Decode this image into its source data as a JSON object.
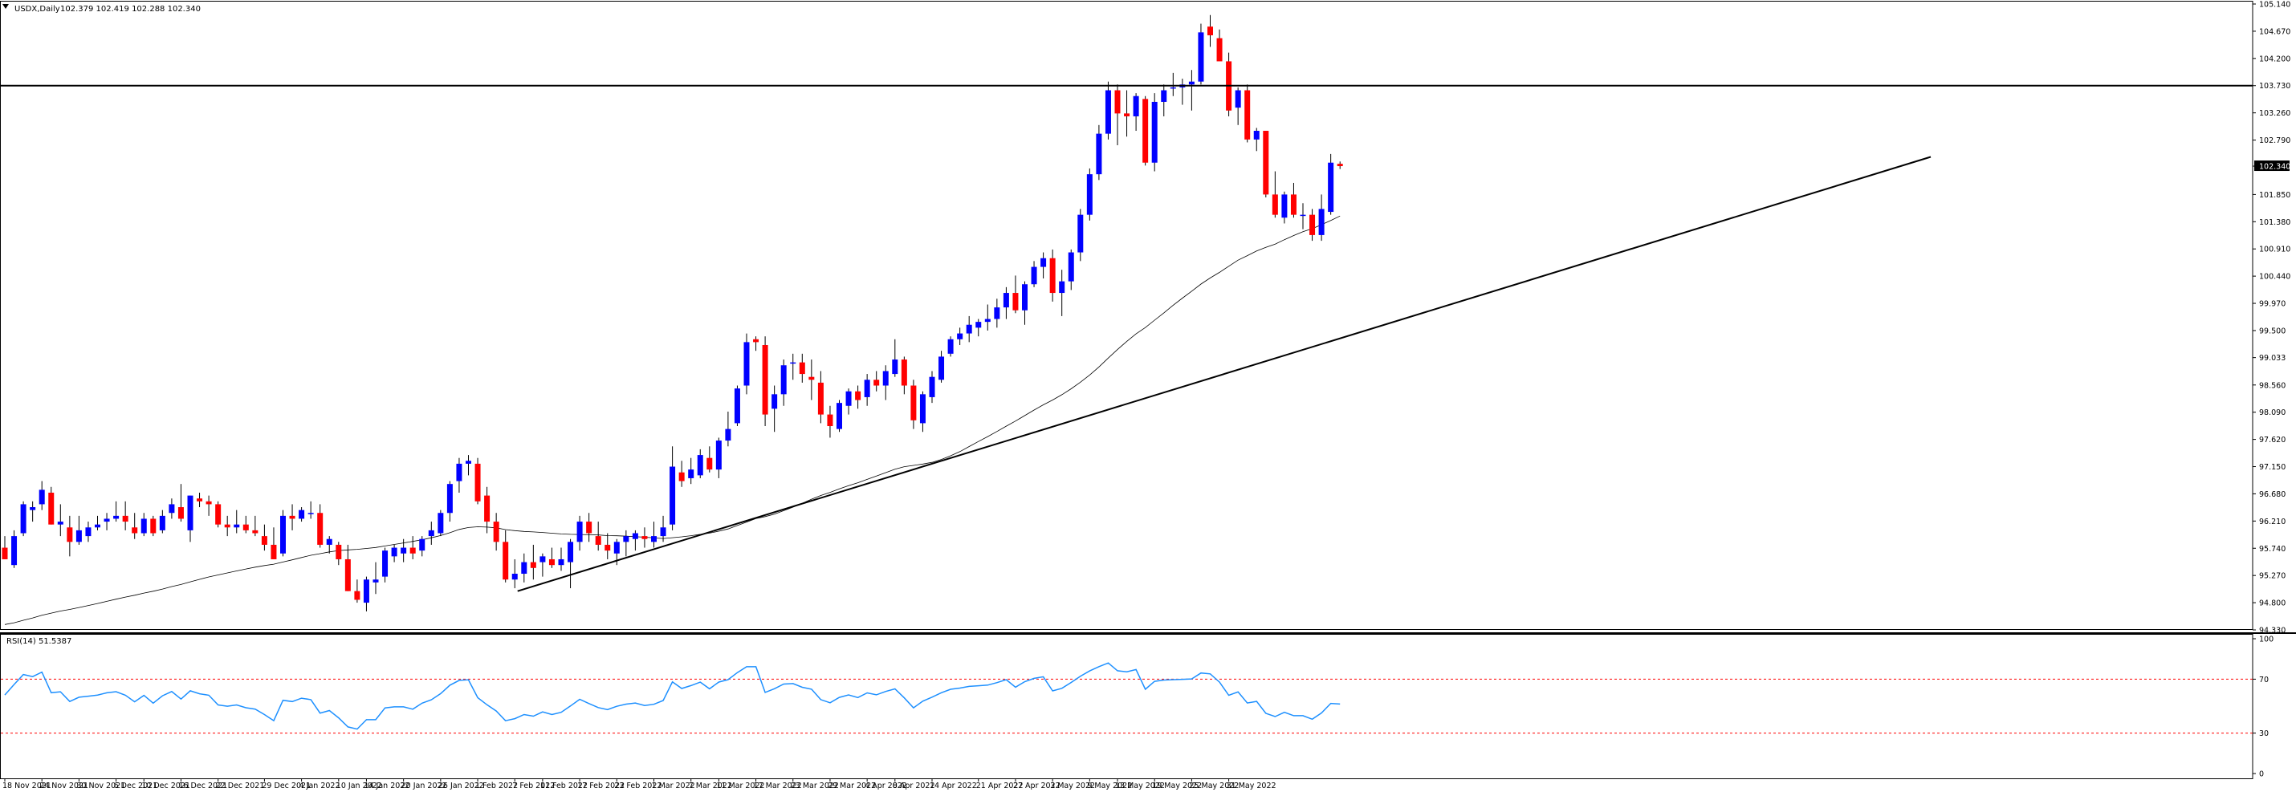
{
  "main_header": {
    "symbol": "USDX,Daily",
    "ohlc": "102.379 102.419 102.288 102.340"
  },
  "rsi_header": {
    "text": "RSI(14) 51.5387"
  },
  "colors": {
    "bull": "#0000ff",
    "bear": "#ff0000",
    "rsi_line": "#1e90ff",
    "ma_line": "#000000",
    "level_lines": "#ff0000",
    "last_price_bg": "#000000"
  },
  "chart_data": [
    {
      "type": "candlestick",
      "symbol": "USDX",
      "timeframe": "Daily",
      "ylim": [
        94.33,
        105.14
      ],
      "price_ticks": [
        "105.140",
        "104.670",
        "104.200",
        "103.730",
        "103.260",
        "102.790",
        "102.340",
        "101.850",
        "101.380",
        "100.910",
        "100.440",
        "99.970",
        "99.500",
        "99.033",
        "98.560",
        "98.090",
        "97.620",
        "97.150",
        "96.680",
        "96.210",
        "95.740",
        "95.270",
        "94.800",
        "94.330"
      ],
      "last_price": 102.34,
      "date_labels": [
        "18 Nov 2021",
        "24 Nov 2021",
        "30 Nov 2021",
        "6 Dec 2021",
        "10 Dec 2021",
        "16 Dec 2021",
        "22 Dec 2021",
        "29 Dec 2021",
        "4 Jan 2022",
        "10 Jan 2022",
        "14 Jan 2022",
        "20 Jan 2022",
        "26 Jan 2022",
        "1 Feb 2022",
        "7 Feb 2022",
        "11 Feb 2022",
        "17 Feb 2022",
        "23 Feb 2022",
        "1 Mar 2022",
        "7 Mar 2022",
        "11 Mar 2022",
        "17 Mar 2022",
        "23 Mar 2022",
        "29 Mar 2022",
        "4 Apr 2022",
        "8 Apr 2022",
        "14 Apr 2022",
        "21 Apr 2022",
        "27 Apr 2022",
        "3 May 2022",
        "9 May 2022",
        "13 May 2022",
        "19 May 2022",
        "25 May 2022",
        "31 May 2022"
      ],
      "date_label_positions": [
        0,
        4,
        8,
        12,
        15,
        19,
        23,
        28,
        32,
        36,
        39,
        43,
        47,
        51,
        55,
        58,
        62,
        66,
        70,
        74,
        77,
        81,
        85,
        89,
        93,
        96,
        100,
        105,
        109,
        113,
        117,
        120,
        124,
        128,
        132
      ],
      "candles": [
        [
          95.75,
          95.95,
          95.55,
          95.55
        ],
        [
          95.45,
          96.05,
          95.4,
          95.95
        ],
        [
          96.0,
          96.55,
          95.95,
          96.5
        ],
        [
          96.4,
          96.55,
          96.2,
          96.45
        ],
        [
          96.5,
          96.9,
          96.4,
          96.75
        ],
        [
          96.7,
          96.8,
          96.15,
          96.15
        ],
        [
          96.15,
          96.5,
          95.95,
          96.2
        ],
        [
          96.1,
          96.3,
          95.6,
          95.85
        ],
        [
          95.85,
          96.3,
          95.8,
          96.05
        ],
        [
          95.95,
          96.2,
          95.85,
          96.1
        ],
        [
          96.1,
          96.3,
          96.05,
          96.15
        ],
        [
          96.2,
          96.35,
          96.05,
          96.25
        ],
        [
          96.25,
          96.55,
          96.2,
          96.3
        ],
        [
          96.3,
          96.55,
          96.05,
          96.2
        ],
        [
          96.1,
          96.35,
          95.9,
          96.0
        ],
        [
          96.0,
          96.35,
          95.95,
          96.25
        ],
        [
          96.25,
          96.3,
          95.95,
          96.0
        ],
        [
          96.05,
          96.4,
          96.0,
          96.3
        ],
        [
          96.35,
          96.6,
          96.25,
          96.5
        ],
        [
          96.45,
          96.85,
          96.2,
          96.25
        ],
        [
          96.05,
          96.65,
          95.85,
          96.65
        ],
        [
          96.6,
          96.7,
          96.45,
          96.55
        ],
        [
          96.55,
          96.65,
          96.3,
          96.5
        ],
        [
          96.5,
          96.55,
          96.1,
          96.15
        ],
        [
          96.15,
          96.3,
          95.95,
          96.1
        ],
        [
          96.1,
          96.4,
          96.0,
          96.15
        ],
        [
          96.15,
          96.3,
          96.0,
          96.05
        ],
        [
          96.05,
          96.3,
          95.95,
          96.0
        ],
        [
          95.95,
          96.15,
          95.7,
          95.8
        ],
        [
          95.8,
          96.1,
          95.55,
          95.55
        ],
        [
          95.65,
          96.4,
          95.6,
          96.3
        ],
        [
          96.3,
          96.5,
          96.05,
          96.25
        ],
        [
          96.25,
          96.45,
          96.2,
          96.4
        ],
        [
          96.35,
          96.55,
          96.25,
          96.35
        ],
        [
          96.35,
          96.5,
          95.75,
          95.8
        ],
        [
          95.8,
          95.95,
          95.65,
          95.9
        ],
        [
          95.8,
          95.85,
          95.45,
          95.55
        ],
        [
          95.55,
          95.8,
          95.0,
          95.0
        ],
        [
          95.0,
          95.2,
          94.8,
          94.85
        ],
        [
          94.8,
          95.25,
          94.65,
          95.2
        ],
        [
          95.15,
          95.5,
          94.95,
          95.2
        ],
        [
          95.25,
          95.75,
          95.15,
          95.7
        ],
        [
          95.6,
          95.8,
          95.5,
          95.75
        ],
        [
          95.65,
          95.9,
          95.5,
          95.75
        ],
        [
          95.75,
          95.95,
          95.55,
          95.65
        ],
        [
          95.7,
          95.95,
          95.6,
          95.9
        ],
        [
          95.95,
          96.2,
          95.8,
          96.05
        ],
        [
          96.0,
          96.4,
          95.95,
          96.35
        ],
        [
          96.35,
          96.9,
          96.2,
          96.85
        ],
        [
          96.9,
          97.3,
          96.7,
          97.2
        ],
        [
          97.2,
          97.35,
          97.0,
          97.25
        ],
        [
          97.2,
          97.3,
          96.5,
          96.55
        ],
        [
          96.65,
          96.8,
          96.0,
          96.2
        ],
        [
          96.2,
          96.35,
          95.7,
          95.85
        ],
        [
          95.85,
          96.05,
          95.15,
          95.2
        ],
        [
          95.2,
          95.55,
          95.05,
          95.3
        ],
        [
          95.3,
          95.65,
          95.15,
          95.5
        ],
        [
          95.5,
          95.8,
          95.2,
          95.4
        ],
        [
          95.5,
          95.65,
          95.25,
          95.6
        ],
        [
          95.55,
          95.75,
          95.4,
          95.45
        ],
        [
          95.45,
          95.75,
          95.35,
          95.55
        ],
        [
          95.5,
          95.9,
          95.05,
          95.85
        ],
        [
          95.85,
          96.3,
          95.7,
          96.2
        ],
        [
          96.2,
          96.35,
          95.85,
          96.0
        ],
        [
          95.95,
          96.2,
          95.7,
          95.8
        ],
        [
          95.8,
          96.0,
          95.55,
          95.7
        ],
        [
          95.65,
          95.9,
          95.45,
          95.85
        ],
        [
          95.85,
          96.05,
          95.6,
          95.95
        ],
        [
          95.9,
          96.05,
          95.7,
          96.0
        ],
        [
          95.95,
          96.1,
          95.75,
          95.9
        ],
        [
          95.85,
          96.2,
          95.75,
          95.95
        ],
        [
          95.95,
          96.3,
          95.85,
          96.1
        ],
        [
          96.15,
          97.5,
          96.05,
          97.15
        ],
        [
          97.05,
          97.25,
          96.8,
          96.9
        ],
        [
          96.95,
          97.3,
          96.85,
          97.1
        ],
        [
          97.0,
          97.45,
          96.95,
          97.35
        ],
        [
          97.3,
          97.5,
          97.05,
          97.1
        ],
        [
          97.1,
          97.65,
          96.95,
          97.6
        ],
        [
          97.6,
          98.1,
          97.5,
          97.8
        ],
        [
          97.9,
          98.55,
          97.85,
          98.5
        ],
        [
          98.55,
          99.45,
          98.4,
          99.3
        ],
        [
          99.35,
          99.4,
          99.15,
          99.3
        ],
        [
          99.25,
          99.4,
          97.85,
          98.05
        ],
        [
          98.15,
          98.55,
          97.75,
          98.4
        ],
        [
          98.4,
          99.0,
          98.2,
          98.9
        ],
        [
          98.95,
          99.1,
          98.65,
          98.95
        ],
        [
          98.95,
          99.1,
          98.6,
          98.75
        ],
        [
          98.7,
          99.0,
          98.3,
          98.65
        ],
        [
          98.6,
          98.8,
          97.9,
          98.05
        ],
        [
          98.05,
          98.2,
          97.65,
          97.85
        ],
        [
          97.8,
          98.3,
          97.75,
          98.25
        ],
        [
          98.2,
          98.5,
          98.05,
          98.45
        ],
        [
          98.45,
          98.55,
          98.15,
          98.3
        ],
        [
          98.35,
          98.75,
          98.2,
          98.65
        ],
        [
          98.65,
          98.8,
          98.45,
          98.55
        ],
        [
          98.55,
          98.9,
          98.3,
          98.8
        ],
        [
          98.75,
          99.35,
          98.7,
          99.0
        ],
        [
          99.0,
          99.05,
          98.4,
          98.55
        ],
        [
          98.55,
          98.65,
          97.8,
          97.95
        ],
        [
          97.9,
          98.45,
          97.75,
          98.4
        ],
        [
          98.35,
          98.8,
          98.25,
          98.7
        ],
        [
          98.65,
          99.15,
          98.6,
          99.05
        ],
        [
          99.1,
          99.4,
          99.05,
          99.35
        ],
        [
          99.35,
          99.55,
          99.25,
          99.45
        ],
        [
          99.45,
          99.75,
          99.3,
          99.6
        ],
        [
          99.55,
          99.7,
          99.4,
          99.65
        ],
        [
          99.65,
          99.95,
          99.5,
          99.7
        ],
        [
          99.7,
          100.05,
          99.55,
          99.9
        ],
        [
          99.9,
          100.25,
          99.7,
          100.15
        ],
        [
          100.15,
          100.45,
          99.8,
          99.85
        ],
        [
          99.85,
          100.35,
          99.6,
          100.3
        ],
        [
          100.3,
          100.7,
          100.25,
          100.6
        ],
        [
          100.6,
          100.85,
          100.4,
          100.75
        ],
        [
          100.75,
          100.9,
          100.0,
          100.15
        ],
        [
          100.15,
          100.55,
          99.75,
          100.35
        ],
        [
          100.35,
          100.9,
          100.2,
          100.85
        ],
        [
          100.85,
          101.6,
          100.7,
          101.5
        ],
        [
          101.5,
          102.3,
          101.4,
          102.2
        ],
        [
          102.2,
          103.05,
          102.1,
          102.9
        ],
        [
          102.9,
          103.8,
          102.8,
          103.65
        ],
        [
          103.65,
          103.75,
          102.7,
          103.25
        ],
        [
          103.25,
          103.65,
          102.85,
          103.2
        ],
        [
          103.2,
          103.6,
          102.95,
          103.55
        ],
        [
          103.5,
          103.55,
          102.35,
          102.4
        ],
        [
          102.4,
          103.6,
          102.25,
          103.45
        ],
        [
          103.45,
          103.75,
          103.2,
          103.65
        ],
        [
          103.7,
          103.95,
          103.55,
          103.7
        ],
        [
          103.7,
          103.85,
          103.4,
          103.75
        ],
        [
          103.75,
          104.0,
          103.3,
          103.8
        ],
        [
          103.8,
          104.8,
          103.75,
          104.65
        ],
        [
          104.75,
          104.95,
          104.4,
          104.6
        ],
        [
          104.55,
          104.7,
          104.2,
          104.15
        ],
        [
          104.15,
          104.3,
          103.2,
          103.3
        ],
        [
          103.35,
          103.7,
          103.05,
          103.65
        ],
        [
          103.65,
          103.75,
          102.75,
          102.8
        ],
        [
          102.8,
          103.0,
          102.6,
          102.95
        ],
        [
          102.95,
          102.95,
          101.8,
          101.85
        ],
        [
          101.85,
          102.25,
          101.45,
          101.5
        ],
        [
          101.45,
          101.9,
          101.35,
          101.85
        ],
        [
          101.85,
          102.05,
          101.45,
          101.5
        ],
        [
          101.5,
          101.7,
          101.25,
          101.5
        ],
        [
          101.5,
          101.6,
          101.05,
          101.15
        ],
        [
          101.15,
          101.85,
          101.05,
          101.6
        ],
        [
          101.55,
          102.55,
          101.5,
          102.4
        ],
        [
          102.38,
          102.42,
          102.29,
          102.34
        ]
      ],
      "ma_period": 50,
      "trendline": {
        "start": {
          "date": "8 Feb 2022",
          "price": 95.0
        },
        "end": {
          "date": "14 Jun 2022",
          "price": 102.35
        }
      },
      "horizontal_level": 103.73
    },
    {
      "type": "line",
      "name": "RSI(14)",
      "value": 51.5387,
      "ylim": [
        0,
        100
      ],
      "levels": [
        70,
        30
      ],
      "ticks": [
        "100",
        "70",
        "30",
        "0"
      ]
    }
  ]
}
